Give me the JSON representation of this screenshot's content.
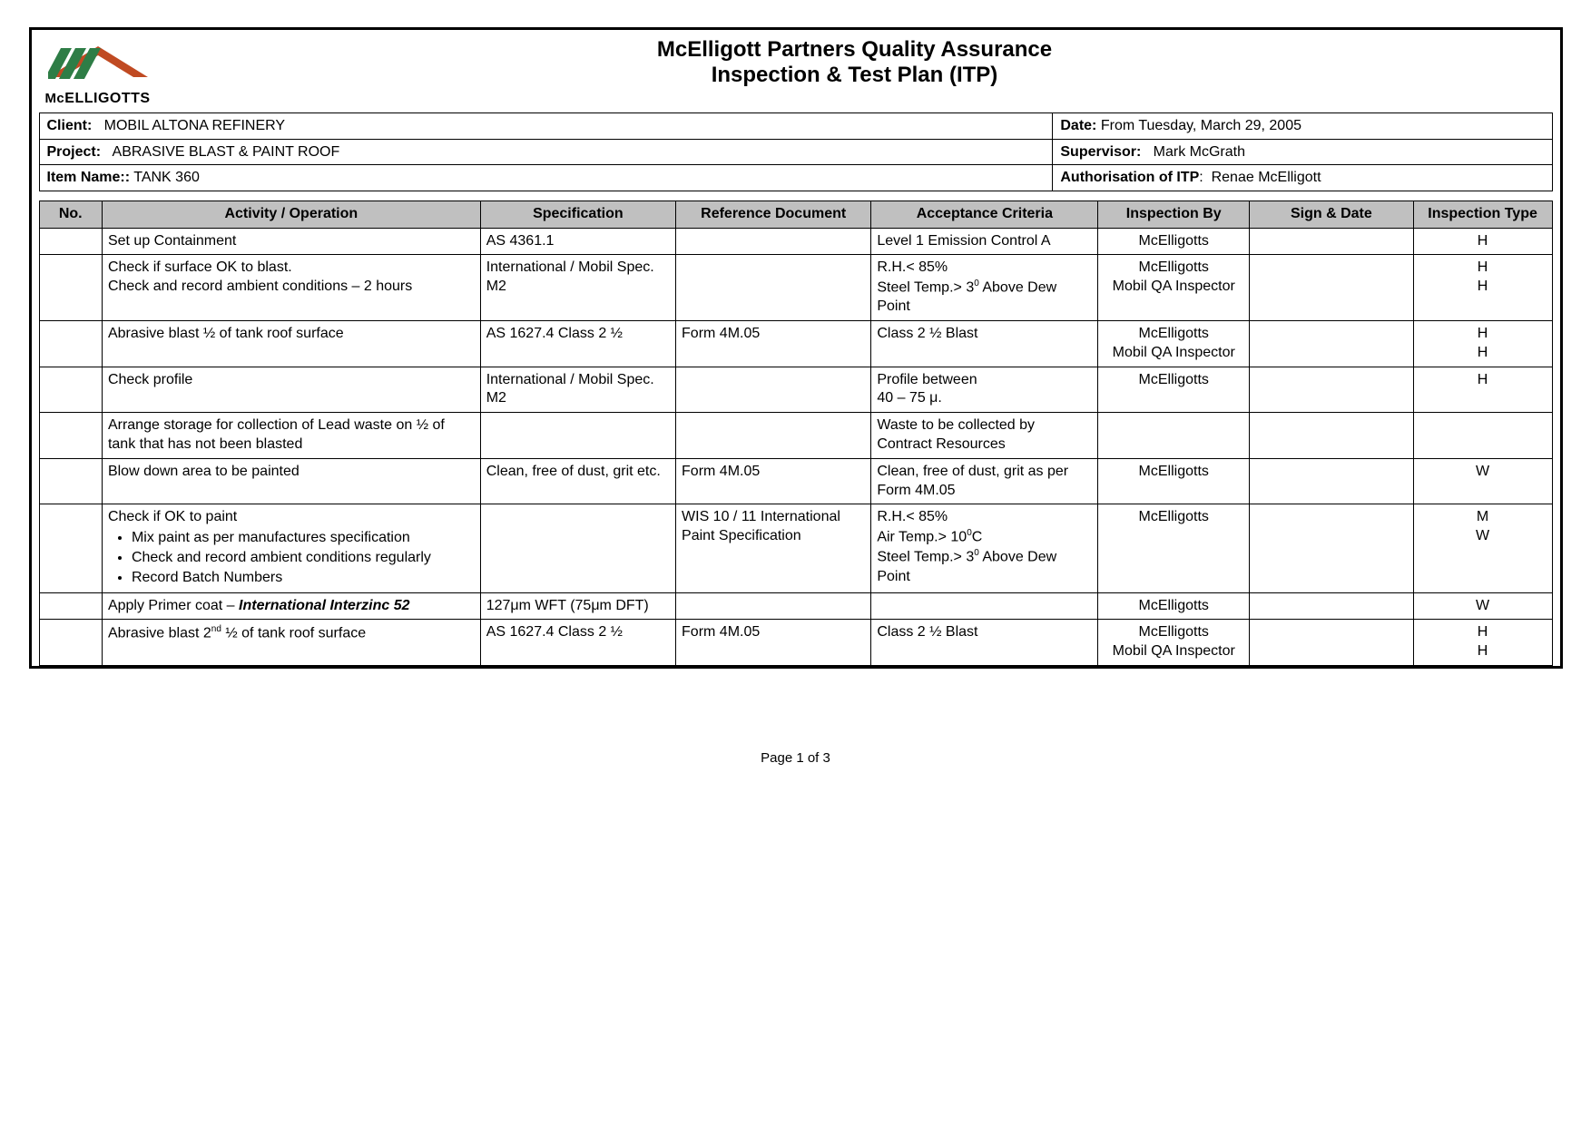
{
  "title": {
    "line1": "McElligott Partners Quality Assurance",
    "line2": "Inspection & Test Plan (ITP)"
  },
  "logo": {
    "text_mc": "Mc",
    "text_rest": "ELLIGOTTS",
    "roof_fill": "#c04a22",
    "stripe_fill": "#2e7d46"
  },
  "meta": {
    "client_label": "Client:",
    "client_value": "MOBIL ALTONA REFINERY",
    "date_label": "Date:",
    "date_value": "From Tuesday, March 29, 2005",
    "project_label": "Project:",
    "project_value": "ABRASIVE BLAST & PAINT ROOF",
    "supervisor_label": "Supervisor:",
    "supervisor_value": "Mark McGrath",
    "item_label": "Item Name::",
    "item_value": "TANK 360",
    "auth_label": "Authorisation of ITP",
    "auth_value": "Renae McElligott"
  },
  "columns": {
    "no": "No.",
    "activity": "Activity / Operation",
    "spec": "Specification",
    "ref": "Reference Document",
    "acc": "Acceptance Criteria",
    "by": "Inspection By",
    "sign": "Sign & Date",
    "type": "Inspection Type"
  },
  "rows": [
    {
      "activity_html": "Set up Containment",
      "spec": "AS 4361.1",
      "ref": "",
      "acc_html": "Level 1 Emission Control A",
      "by_html": "McElligotts",
      "type_html": "H"
    },
    {
      "activity_html": "Check if surface OK to blast.<br>Check and record ambient conditions – 2 hours",
      "spec": "International / Mobil Spec. M2",
      "ref": "",
      "acc_html": "R.H.&lt; 85%<br>Steel Temp.&gt; 3<sup>0</sup> Above Dew Point",
      "by_html": "McElligotts<br>Mobil QA Inspector",
      "type_html": "H<br>H"
    },
    {
      "activity_html": "Abrasive blast ½ of tank roof surface",
      "spec": "AS 1627.4 Class 2 ½",
      "ref": "Form 4M.05",
      "acc_html": "Class 2 ½ Blast",
      "by_html": "McElligotts<br>Mobil QA Inspector",
      "type_html": "H<br>H"
    },
    {
      "activity_html": "Check profile",
      "spec": "International / Mobil Spec. M2",
      "ref": "",
      "acc_html": "Profile between<br>40 – 75 μ.",
      "by_html": "McElligotts",
      "type_html": "H"
    },
    {
      "activity_html": "Arrange storage for collection of Lead waste on ½ of tank that has not been blasted",
      "spec": "",
      "ref": "",
      "acc_html": "Waste to be collected by Contract Resources",
      "by_html": "",
      "type_html": ""
    },
    {
      "activity_html": "Blow down area to be painted",
      "spec": "Clean, free of dust, grit etc.",
      "ref": "Form 4M.05",
      "acc_html": "Clean, free of dust, grit as per Form 4M.05",
      "by_html": "McElligotts",
      "type_html": "W"
    },
    {
      "activity_html": "Check if OK to paint<ul class=\"activity-bullets\"><li>Mix paint as per manufactures specification</li><li>Check and record ambient conditions regularly</li><li>Record Batch Numbers</li></ul>",
      "spec": "",
      "ref": "WIS 10 / 11 International Paint Specification",
      "acc_html": "R.H.&lt; 85%<br>Air Temp.&gt; 10<sup>0</sup>C<br>Steel Temp.&gt; 3<sup>0</sup> Above Dew Point",
      "by_html": "McElligotts",
      "type_html": "M<br>W"
    },
    {
      "activity_html": "Apply Primer coat – <b><i>International Interzinc 52</i></b>",
      "spec": "127μm WFT (75μm DFT)",
      "ref": "",
      "acc_html": "",
      "by_html": "McElligotts",
      "type_html": "W"
    },
    {
      "activity_html": "Abrasive blast 2<sup>nd</sup> ½ of tank roof surface",
      "spec": "AS 1627.4 Class 2 ½",
      "ref": "Form 4M.05",
      "acc_html": "Class 2 ½ Blast",
      "by_html": "McElligotts<br>Mobil QA Inspector",
      "type_html": "H<br>H"
    }
  ],
  "footer": {
    "page": "Page 1 of 3"
  }
}
